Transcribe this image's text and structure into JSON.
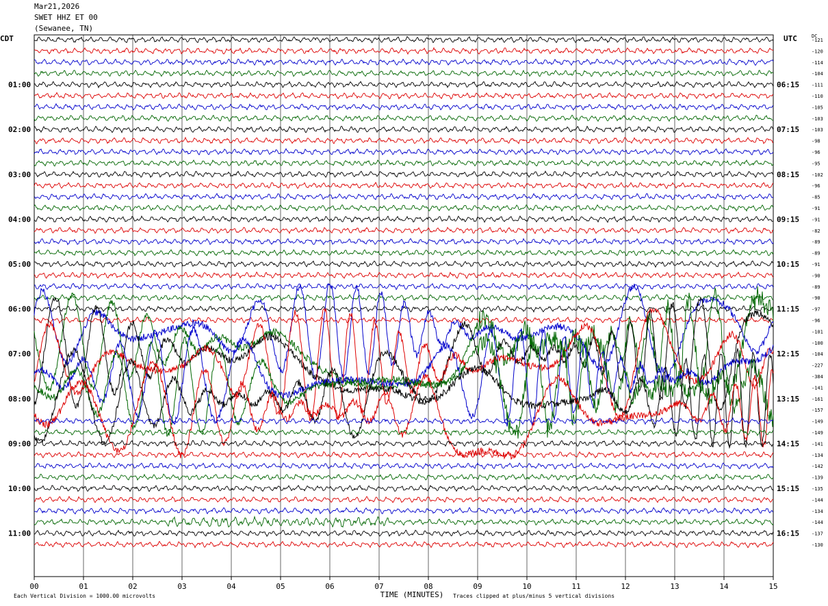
{
  "header": {
    "date": "Mar21,2026",
    "station": "SWET HHZ ET 00",
    "location": "(Sewanee, TN)"
  },
  "chart_data": {
    "type": "line",
    "xlabel": "TIME (MINUTES)",
    "x_ticks": [
      "00",
      "01",
      "02",
      "03",
      "04",
      "05",
      "06",
      "07",
      "08",
      "09",
      "10",
      "11",
      "12",
      "13",
      "14",
      "15"
    ],
    "xlim": [
      0,
      15
    ],
    "grid": true,
    "left_axis_label": "CDT",
    "right_axis_label": "UTC",
    "dc_label": "DC",
    "left_time_labels": [
      "01:00",
      "02:00",
      "03:00",
      "04:00",
      "05:00",
      "06:00",
      "07:00",
      "08:00",
      "09:00",
      "10:00",
      "11:00"
    ],
    "right_time_labels": [
      "06:15",
      "07:15",
      "08:15",
      "09:15",
      "10:15",
      "11:15",
      "12:15",
      "13:15",
      "14:15",
      "15:15",
      "16:15"
    ],
    "dc_offsets": [
      -121,
      -120,
      -114,
      -104,
      -111,
      -110,
      -105,
      -103,
      -103,
      -98,
      -96,
      -95,
      -102,
      -96,
      -85,
      -91,
      -91,
      -82,
      -89,
      -89,
      -91,
      -90,
      -89,
      -90,
      -97,
      -96,
      -101,
      -100,
      -104,
      -227,
      -384,
      -141,
      -161,
      -157,
      -149,
      -149,
      -141,
      -134,
      -142,
      -139,
      -135,
      -144,
      -134,
      -144,
      -137,
      -130
    ],
    "trace_colors": [
      "#000000",
      "#dd0000",
      "#0000cc",
      "#006600"
    ],
    "event_traces": [
      26,
      27,
      28,
      29,
      30,
      31,
      32,
      33
    ],
    "footer_left": "Each Vertical Division = 1000.00 microvolts",
    "footer_right": "Traces clipped at plus/minus 5 vertical divisions"
  }
}
